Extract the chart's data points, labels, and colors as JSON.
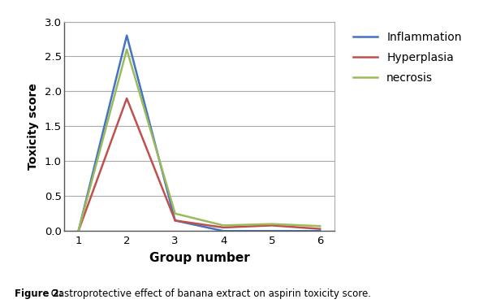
{
  "x": [
    1,
    2,
    3,
    4,
    5,
    6
  ],
  "inflammation": [
    0,
    2.8,
    0.15,
    0.0,
    0.0,
    0.0
  ],
  "hyperplasia": [
    0,
    1.9,
    0.15,
    0.05,
    0.08,
    0.03
  ],
  "necrosis": [
    0,
    2.6,
    0.25,
    0.08,
    0.1,
    0.07
  ],
  "colors": {
    "inflammation": "#4472C4",
    "hyperplasia": "#C0504D",
    "necrosis": "#9BBB59"
  },
  "legend_labels": [
    "Inflammation",
    "Hyperplasia",
    "necrosis"
  ],
  "xlabel": "Group number",
  "ylabel": "Toxicity score",
  "ylim": [
    0,
    3
  ],
  "yticks": [
    0,
    0.5,
    1,
    1.5,
    2,
    2.5,
    3
  ],
  "xticks": [
    1,
    2,
    3,
    4,
    5,
    6
  ],
  "caption_bold": "Figure 2:",
  "caption_normal": " Gastroprotective effect of banana extract on aspirin toxicity score.",
  "linewidth": 1.8,
  "background_color": "#ffffff"
}
